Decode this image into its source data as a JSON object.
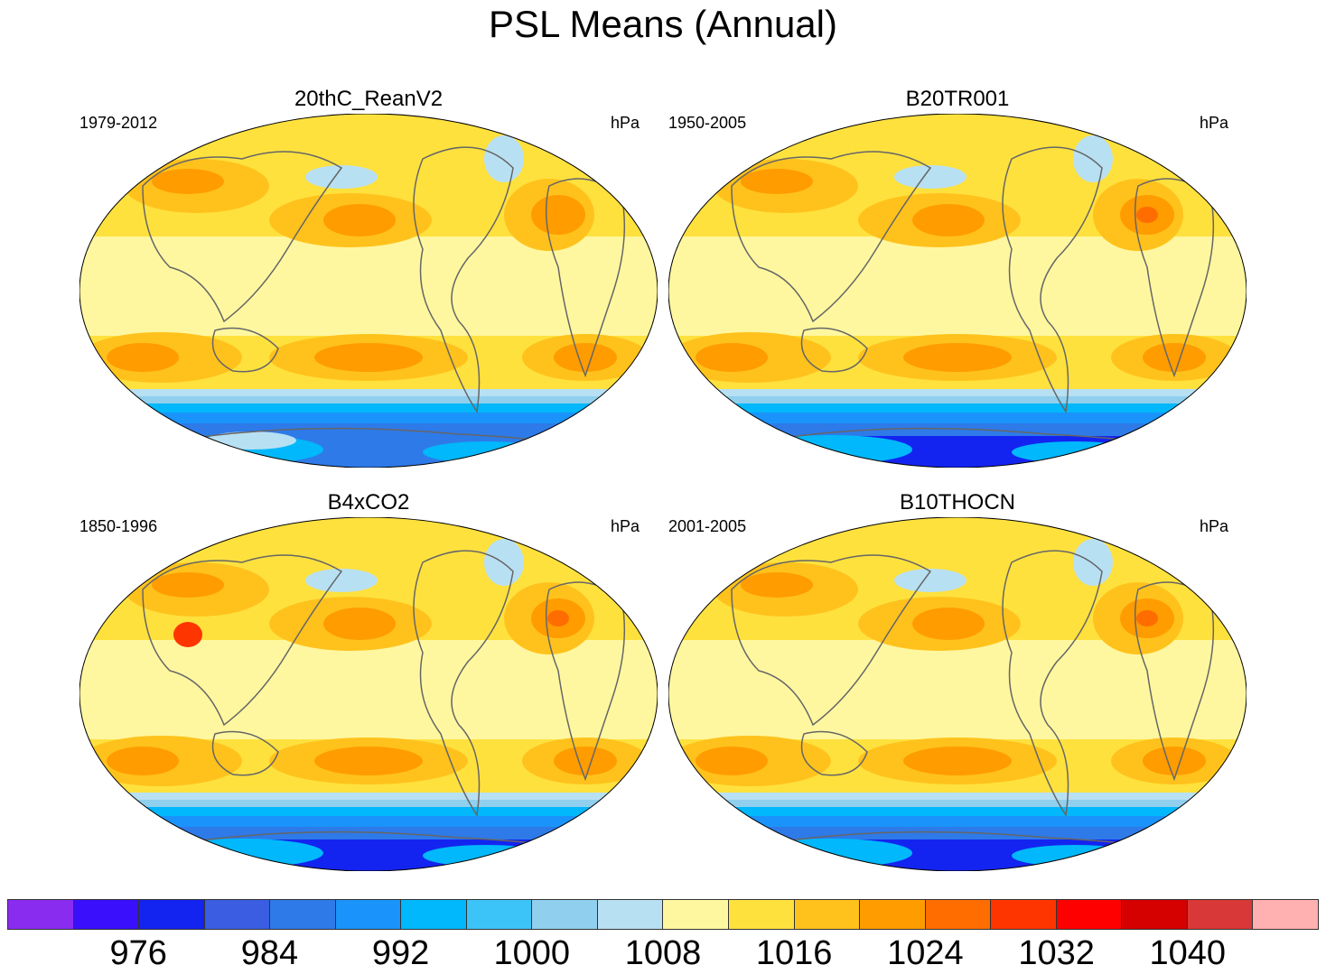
{
  "title": "PSL Means (Annual)",
  "panels": [
    {
      "title": "20thC_ReanV2",
      "period": "1979-2012",
      "units": "hPa"
    },
    {
      "title": "B20TR001",
      "period": "1950-2005",
      "units": "hPa"
    },
    {
      "title": "B4xCO2",
      "period": "1850-1996",
      "units": "hPa"
    },
    {
      "title": "B10THOCN",
      "period": "2001-2005",
      "units": "hPa"
    }
  ],
  "colorbar": {
    "colors": [
      "#8a2cf0",
      "#3a0ffb",
      "#1424f0",
      "#3a5de2",
      "#2e7ae8",
      "#1a93fa",
      "#00b8fb",
      "#3cc4f8",
      "#90d0ee",
      "#b8e0f3",
      "#fff7a0",
      "#ffe13e",
      "#ffc21c",
      "#ff9c00",
      "#ff6d00",
      "#ff3500",
      "#fe0000",
      "#d50000",
      "#d93838",
      "#ffb0b0"
    ],
    "labels": [
      "976",
      "984",
      "992",
      "1000",
      "1008",
      "1016",
      "1024",
      "1032",
      "1040"
    ]
  },
  "chart_data": {
    "type": "heatmap",
    "title": "PSL Means (Annual)",
    "units": "hPa",
    "contour_levels": [
      972,
      976,
      980,
      984,
      988,
      992,
      996,
      1000,
      1004,
      1008,
      1012,
      1016,
      1020,
      1024,
      1028,
      1032,
      1036,
      1040,
      1044
    ],
    "labeled_levels": [
      976,
      984,
      992,
      1000,
      1008,
      1016,
      1024,
      1032,
      1040
    ],
    "legend_placement": "bottom",
    "panels": [
      "20thC_ReanV2",
      "B20TR001",
      "B4xCO2",
      "B10THOCN"
    ]
  }
}
